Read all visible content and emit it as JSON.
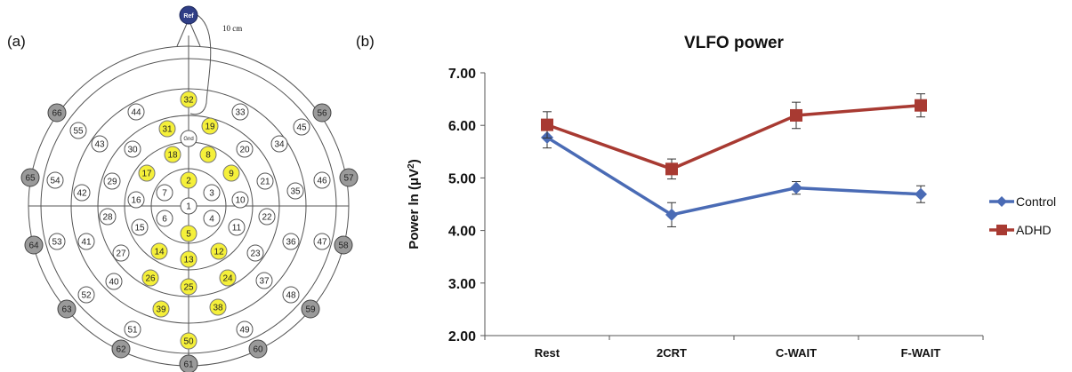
{
  "panel_labels": {
    "a": "(a)",
    "b": "(b)"
  },
  "montage": {
    "reference_label": "Ref",
    "ground_label": "Gnd",
    "scale_label": "10 cm",
    "colors": {
      "highlight": "#f5f03a",
      "outer": "#9a9a9a",
      "normal": "#ffffff",
      "reference": "#2f3e86"
    },
    "highlighted": [
      "2",
      "5",
      "8",
      "9",
      "12",
      "13",
      "14",
      "17",
      "18",
      "19",
      "24",
      "25",
      "26",
      "31",
      "32",
      "38",
      "39",
      "50"
    ],
    "outer": [
      "56",
      "57",
      "58",
      "59",
      "60",
      "61",
      "62",
      "63",
      "64",
      "65",
      "66"
    ],
    "electrodes": [
      "1",
      "2",
      "3",
      "4",
      "5",
      "6",
      "7",
      "8",
      "9",
      "10",
      "11",
      "12",
      "13",
      "14",
      "15",
      "16",
      "17",
      "18",
      "19",
      "20",
      "21",
      "22",
      "23",
      "24",
      "25",
      "26",
      "27",
      "28",
      "29",
      "30",
      "31",
      "32",
      "33",
      "34",
      "35",
      "36",
      "37",
      "38",
      "39",
      "40",
      "41",
      "42",
      "43",
      "44",
      "45",
      "46",
      "47",
      "48",
      "49",
      "50",
      "51",
      "52",
      "53",
      "54",
      "55",
      "56",
      "57",
      "58",
      "59",
      "60",
      "61",
      "62",
      "63",
      "64",
      "65",
      "66"
    ]
  },
  "chart_data": {
    "type": "line",
    "title": "VLFO power",
    "ylabel_prefix": "Power ln (μV",
    "ylabel_sup": "2",
    "ylabel_suffix": ")",
    "xlabel": "",
    "categories": [
      "Rest",
      "2CRT",
      "C-WAIT",
      "F-WAIT"
    ],
    "ylim": [
      2.0,
      7.0
    ],
    "yticks": [
      "2.00",
      "3.00",
      "4.00",
      "5.00",
      "6.00",
      "7.00"
    ],
    "grid": false,
    "legend_position": "right",
    "series": [
      {
        "name": "Control",
        "marker": "diamond",
        "color": "#4a6bb5",
        "values": [
          5.77,
          4.3,
          4.81,
          4.69
        ],
        "error": [
          0.2,
          0.23,
          0.12,
          0.16
        ]
      },
      {
        "name": "ADHD",
        "marker": "square",
        "color": "#a83a32",
        "values": [
          6.01,
          5.17,
          6.19,
          6.38
        ],
        "error": [
          0.25,
          0.19,
          0.25,
          0.22
        ]
      }
    ]
  }
}
